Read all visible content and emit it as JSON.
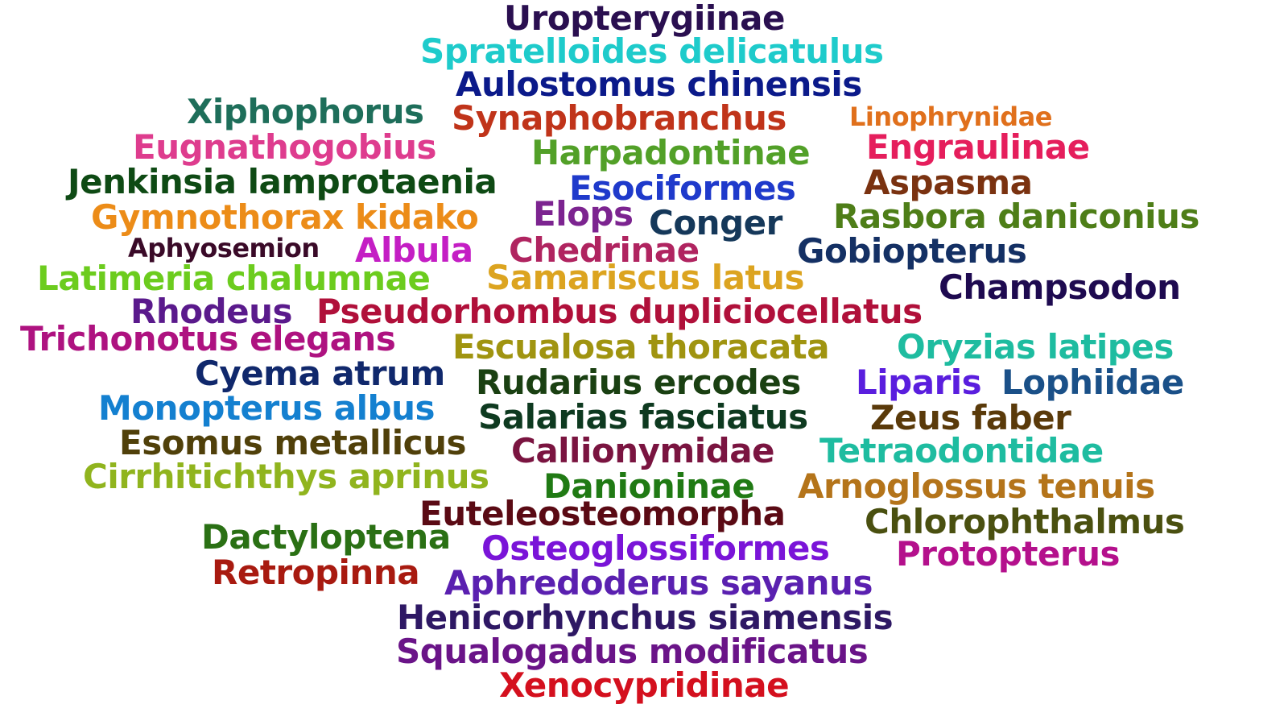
{
  "words": [
    {
      "text": "Uropterygiinae",
      "color": "#2a0f50"
    },
    {
      "text": "Spratelloides delicatulus",
      "color": "#1ecbcb"
    },
    {
      "text": "Aulostomus chinensis",
      "color": "#0b1a8a"
    },
    {
      "text": "Xiphophorus",
      "color": "#1e6e5a"
    },
    {
      "text": "Synaphobranchus",
      "color": "#c0341a"
    },
    {
      "text": "Linophrynidae",
      "color": "#e0701c"
    },
    {
      "text": "Eugnathogobius",
      "color": "#de3c8e"
    },
    {
      "text": "Harpadontinae",
      "color": "#52a028"
    },
    {
      "text": "Engraulinae",
      "color": "#e51e5c"
    },
    {
      "text": "Jenkinsia lamprotaenia",
      "color": "#0e4a14"
    },
    {
      "text": "Esociformes",
      "color": "#1f3acb"
    },
    {
      "text": "Aspasma",
      "color": "#7a3210"
    },
    {
      "text": "Gymnothorax kidako",
      "color": "#ec8c18"
    },
    {
      "text": "Elops",
      "color": "#7c2490"
    },
    {
      "text": "Conger",
      "color": "#15385a"
    },
    {
      "text": "Rasbora daniconius",
      "color": "#4e7e18"
    },
    {
      "text": "Aphyosemion",
      "color": "#3a0a28"
    },
    {
      "text": "Albula",
      "color": "#c41ec4"
    },
    {
      "text": "Chedrinae",
      "color": "#b02460"
    },
    {
      "text": "Gobiopterus",
      "color": "#143064"
    },
    {
      "text": "Latimeria chalumnae",
      "color": "#6ccc1e"
    },
    {
      "text": "Samariscus latus",
      "color": "#dca420"
    },
    {
      "text": "Champsodon",
      "color": "#1e0a50"
    },
    {
      "text": "Rhodeus",
      "color": "#5a1a8c"
    },
    {
      "text": "Pseudorhombus dupliciocellatus",
      "color": "#b0103a"
    },
    {
      "text": "Trichonotus elegans",
      "color": "#ae1280"
    },
    {
      "text": "Escualosa thoracata",
      "color": "#a09410"
    },
    {
      "text": "Oryzias latipes",
      "color": "#1ebca0"
    },
    {
      "text": "Cyema atrum",
      "color": "#10286c"
    },
    {
      "text": "Rudarius ercodes",
      "color": "#1a4012"
    },
    {
      "text": "Liparis",
      "color": "#5a1ede"
    },
    {
      "text": "Lophiidae",
      "color": "#1a5088"
    },
    {
      "text": "Monopterus albus",
      "color": "#1480d0"
    },
    {
      "text": "Salarias fasciatus",
      "color": "#0e3a20"
    },
    {
      "text": "Zeus faber",
      "color": "#5a3a0a"
    },
    {
      "text": "Esomus metallicus",
      "color": "#50400a"
    },
    {
      "text": "Callionymidae",
      "color": "#7a1440"
    },
    {
      "text": "Tetraodontidae",
      "color": "#1ebca0"
    },
    {
      "text": "Cirrhitichthys aprinus",
      "color": "#90b41e"
    },
    {
      "text": "Danioninae",
      "color": "#207a14"
    },
    {
      "text": "Arnoglossus tenuis",
      "color": "#b4741a"
    },
    {
      "text": "Euteleosteomorpha",
      "color": "#5a0a14"
    },
    {
      "text": "Chlorophthalmus",
      "color": "#4a5010"
    },
    {
      "text": "Dactyloptena",
      "color": "#2a7014"
    },
    {
      "text": "Osteoglossiformes",
      "color": "#7a14d8"
    },
    {
      "text": "Protopterus",
      "color": "#b4108c"
    },
    {
      "text": "Retropinna",
      "color": "#a81a10"
    },
    {
      "text": "Aphredoderus sayanus",
      "color": "#5a20b0"
    },
    {
      "text": "Henicorhynchus siamensis",
      "color": "#2e1864"
    },
    {
      "text": "Squalogadus modificatus",
      "color": "#6a1488"
    },
    {
      "text": "Xenocypridinae",
      "color": "#d4101e"
    }
  ]
}
